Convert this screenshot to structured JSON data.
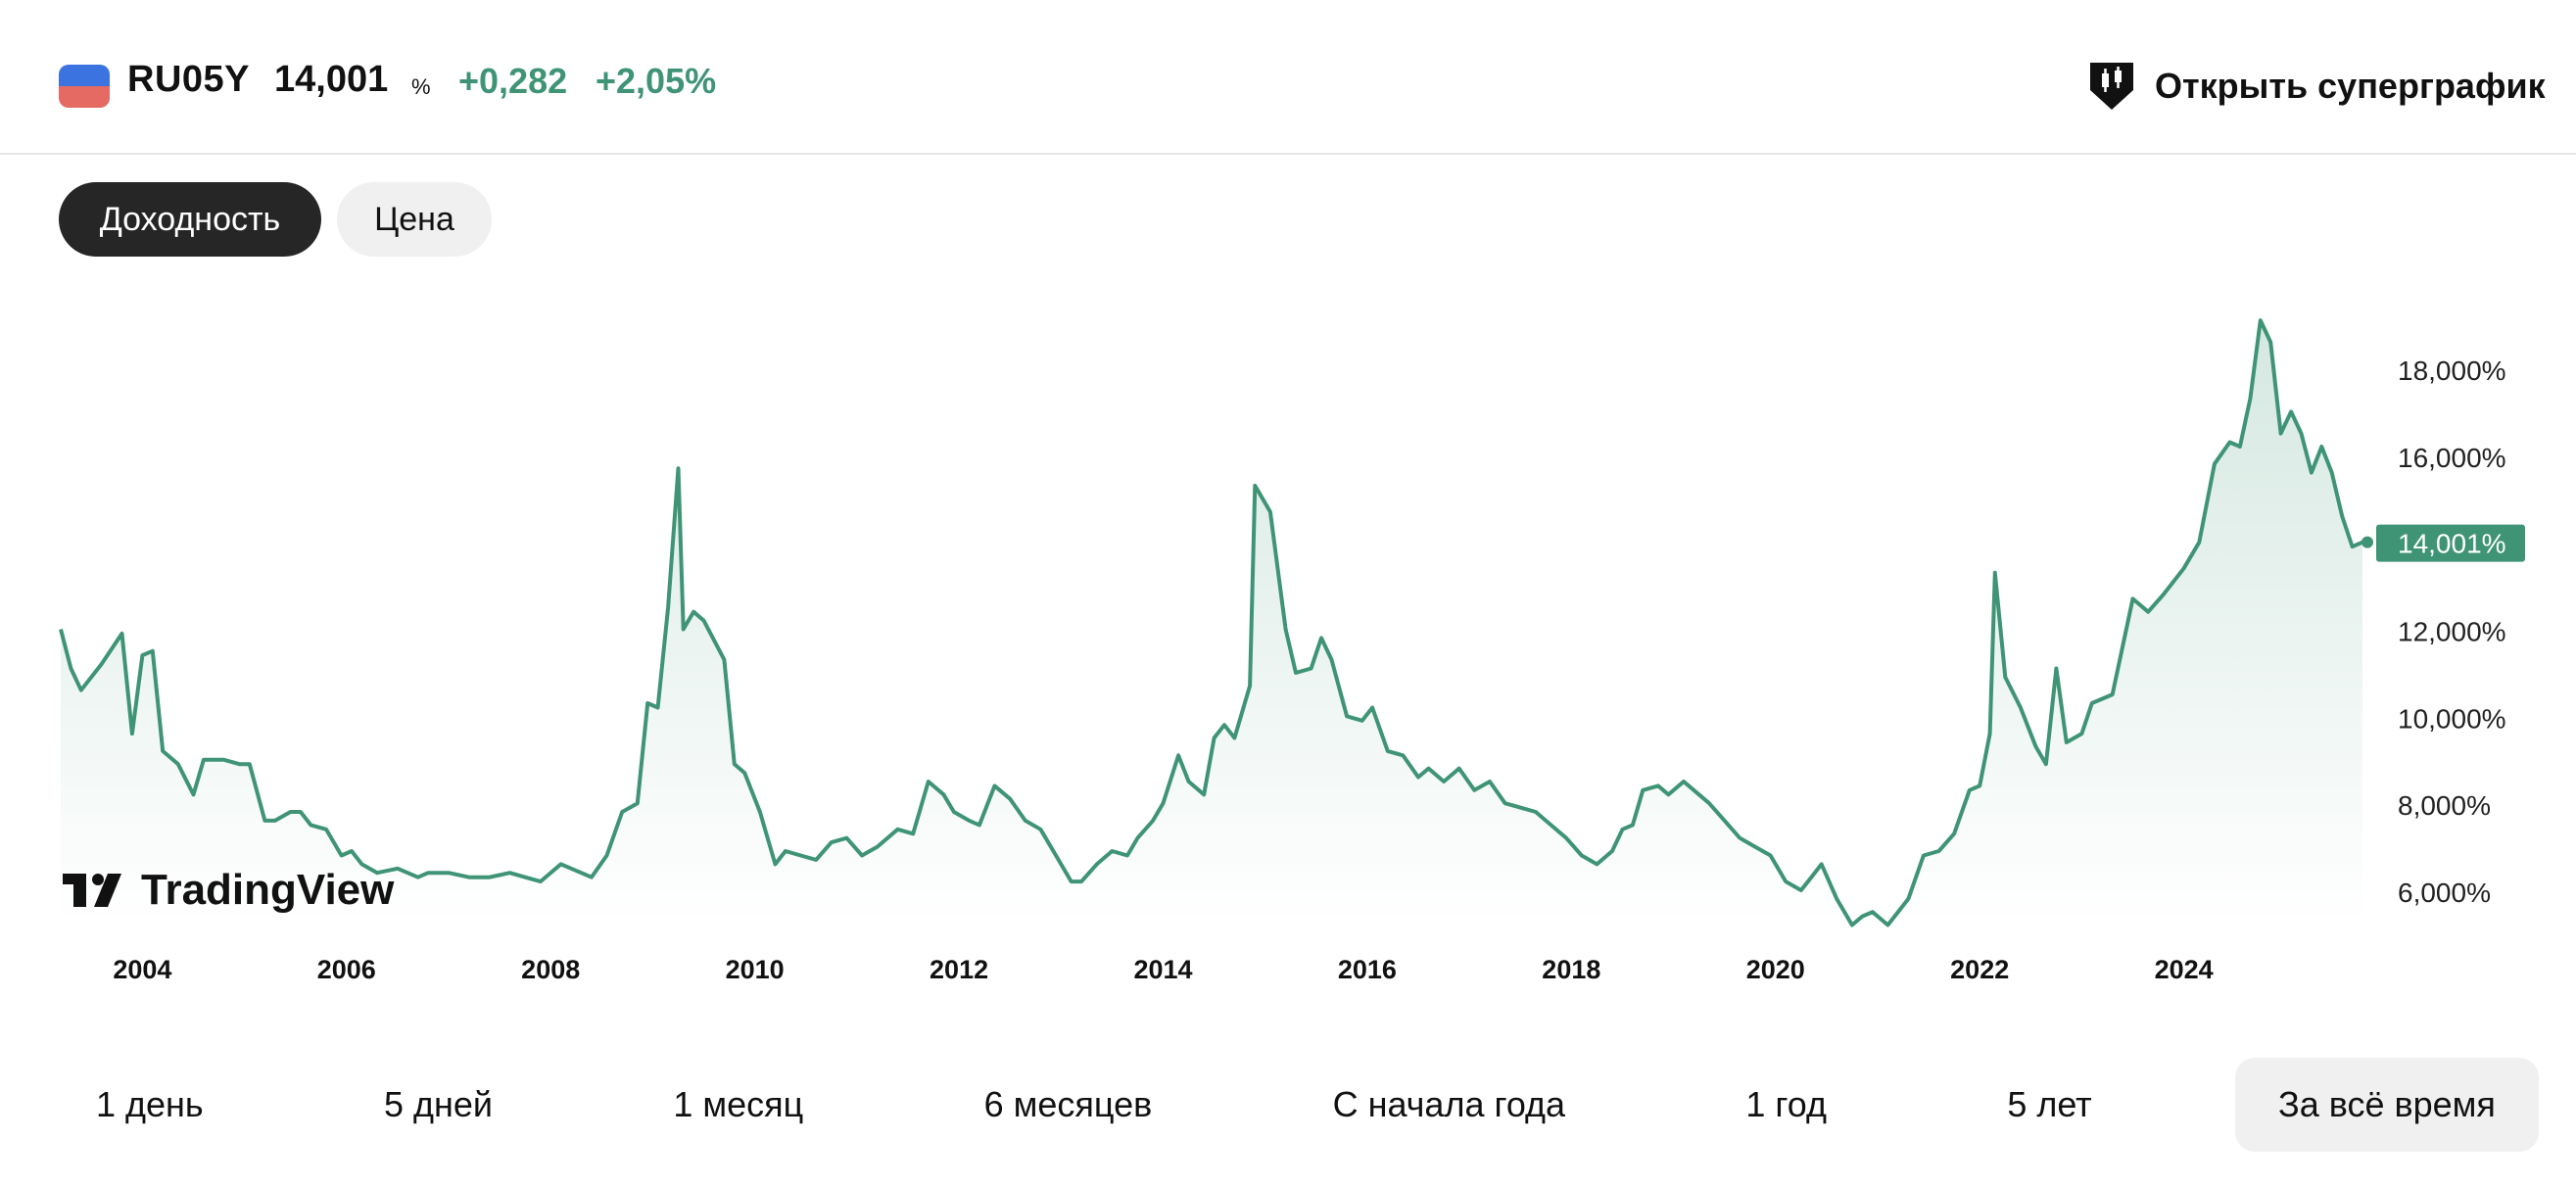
{
  "header": {
    "ticker": "RU05Y",
    "price": "14,001",
    "price_unit": "%",
    "change_abs": "+0,282",
    "change_pct": "+2,05%",
    "super_chart_label": "Открыть суперграфик"
  },
  "tabs": {
    "yield_label": "Доходность",
    "price_label": "Цена"
  },
  "periods": [
    "1 день",
    "5 дней",
    "1 месяц",
    "6 месяцев",
    "С начала года",
    "1 год",
    "5 лет",
    "За всё время"
  ],
  "active_period": "За всё время",
  "colors": {
    "accent": "#3f9476",
    "positive": "#3f9476",
    "flag_blue": "#3b73e0",
    "flag_red": "#e46a63",
    "tab_active_bg": "#262626"
  },
  "watermark": "TradingView",
  "chart_data": {
    "type": "area",
    "title": "RU05Y",
    "xlabel": "",
    "ylabel": "",
    "x_tick_labels": [
      "2004",
      "2006",
      "2008",
      "2010",
      "2012",
      "2014",
      "2016",
      "2018",
      "2020",
      "2022",
      "2024"
    ],
    "y_tick_labels": [
      "6,000%",
      "8,000%",
      "10,000%",
      "12,000%",
      "14,000%",
      "16,000%",
      "18,000%"
    ],
    "xlim": [
      2003.2,
      2025.75
    ],
    "ylim": [
      5.2,
      19.0
    ],
    "current_value": 14.001,
    "current_label": "14,001%",
    "grid": false,
    "x": [
      2003.2,
      2003.3,
      2003.4,
      2003.6,
      2003.8,
      2003.9,
      2004.0,
      2004.1,
      2004.2,
      2004.35,
      2004.5,
      2004.6,
      2004.8,
      2004.95,
      2005.05,
      2005.2,
      2005.3,
      2005.45,
      2005.55,
      2005.65,
      2005.8,
      2005.95,
      2006.05,
      2006.15,
      2006.3,
      2006.5,
      2006.7,
      2006.8,
      2007.0,
      2007.2,
      2007.4,
      2007.6,
      2007.75,
      2007.9,
      2008.1,
      2008.2,
      2008.4,
      2008.55,
      2008.7,
      2008.85,
      2008.95,
      2009.05,
      2009.15,
      2009.25,
      2009.3,
      2009.4,
      2009.5,
      2009.7,
      2009.8,
      2009.9,
      2010.05,
      2010.2,
      2010.3,
      2010.45,
      2010.6,
      2010.75,
      2010.9,
      2011.05,
      2011.2,
      2011.4,
      2011.55,
      2011.7,
      2011.85,
      2011.95,
      2012.1,
      2012.2,
      2012.35,
      2012.5,
      2012.65,
      2012.8,
      2012.95,
      2013.1,
      2013.2,
      2013.35,
      2013.5,
      2013.65,
      2013.75,
      2013.9,
      2014.0,
      2014.15,
      2014.25,
      2014.4,
      2014.5,
      2014.6,
      2014.7,
      2014.85,
      2014.9,
      2015.05,
      2015.2,
      2015.3,
      2015.45,
      2015.55,
      2015.65,
      2015.8,
      2015.95,
      2016.05,
      2016.2,
      2016.35,
      2016.5,
      2016.6,
      2016.75,
      2016.9,
      2017.05,
      2017.2,
      2017.35,
      2017.5,
      2017.65,
      2017.8,
      2017.95,
      2018.1,
      2018.25,
      2018.4,
      2018.5,
      2018.6,
      2018.7,
      2018.85,
      2018.95,
      2019.1,
      2019.25,
      2019.35,
      2019.5,
      2019.65,
      2019.8,
      2019.95,
      2020.1,
      2020.25,
      2020.35,
      2020.45,
      2020.6,
      2020.75,
      2020.85,
      2020.95,
      2021.1,
      2021.3,
      2021.45,
      2021.6,
      2021.75,
      2021.9,
      2022.0,
      2022.1,
      2022.15,
      2022.25,
      2022.4,
      2022.55,
      2022.65,
      2022.75,
      2022.85,
      2023.0,
      2023.1,
      2023.3,
      2023.5,
      2023.65,
      2023.8,
      2024.0,
      2024.15,
      2024.3,
      2024.45,
      2024.55,
      2024.65,
      2024.75,
      2024.85,
      2024.95,
      2025.05,
      2025.15,
      2025.25,
      2025.35,
      2025.45,
      2025.55,
      2025.65,
      2025.75
    ],
    "y": [
      12.0,
      11.1,
      10.6,
      11.2,
      11.9,
      9.6,
      11.4,
      11.5,
      9.2,
      8.9,
      8.2,
      9.0,
      9.0,
      8.9,
      8.9,
      7.6,
      7.6,
      7.8,
      7.8,
      7.5,
      7.4,
      6.8,
      6.9,
      6.6,
      6.4,
      6.5,
      6.3,
      6.4,
      6.4,
      6.3,
      6.3,
      6.4,
      6.3,
      6.2,
      6.6,
      6.5,
      6.3,
      6.8,
      7.8,
      8.0,
      10.3,
      10.2,
      12.5,
      15.7,
      12.0,
      12.4,
      12.2,
      11.3,
      8.9,
      8.7,
      7.8,
      6.6,
      6.9,
      6.8,
      6.7,
      7.1,
      7.2,
      6.8,
      7.0,
      7.4,
      7.3,
      8.5,
      8.2,
      7.8,
      7.6,
      7.5,
      8.4,
      8.1,
      7.6,
      7.4,
      6.8,
      6.2,
      6.2,
      6.6,
      6.9,
      6.8,
      7.2,
      7.6,
      8.0,
      9.1,
      8.5,
      8.2,
      9.5,
      9.8,
      9.5,
      10.7,
      15.3,
      14.7,
      12.0,
      11.0,
      11.1,
      11.8,
      11.3,
      10.0,
      9.9,
      10.2,
      9.2,
      9.1,
      8.6,
      8.8,
      8.5,
      8.8,
      8.3,
      8.5,
      8.0,
      7.9,
      7.8,
      7.5,
      7.2,
      6.8,
      6.6,
      6.9,
      7.4,
      7.5,
      8.3,
      8.4,
      8.2,
      8.5,
      8.2,
      8.0,
      7.6,
      7.2,
      7.0,
      6.8,
      6.2,
      6.0,
      6.3,
      6.6,
      5.8,
      5.2,
      5.4,
      5.5,
      5.2,
      5.8,
      6.8,
      6.9,
      7.3,
      8.3,
      8.4,
      9.6,
      13.3,
      10.9,
      10.2,
      9.3,
      8.9,
      11.1,
      9.4,
      9.6,
      10.3,
      10.5,
      12.7,
      12.4,
      12.8,
      13.4,
      14.0,
      15.8,
      16.3,
      16.2,
      17.3,
      19.1,
      18.6,
      16.5,
      17.0,
      16.5,
      15.6,
      16.2,
      15.6,
      14.6,
      13.9,
      14.0
    ]
  }
}
